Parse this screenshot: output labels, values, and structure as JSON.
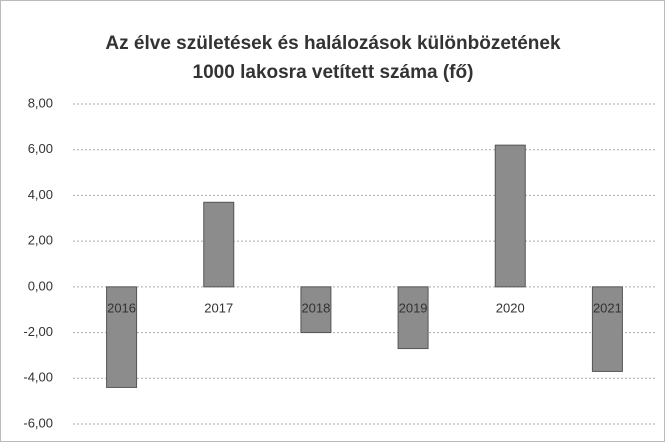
{
  "chart_data": {
    "type": "bar",
    "title": "Az élve születések és halálozások különbözetének 1000 lakosra vetített száma (fő)",
    "categories": [
      "2016",
      "2017",
      "2018",
      "2019",
      "2020",
      "2021"
    ],
    "values": [
      -4.4,
      3.7,
      -2.0,
      -2.7,
      6.2,
      -3.7
    ],
    "color": "#8c8c8c",
    "ylim": [
      -6,
      8
    ],
    "yticks": [
      {
        "value": -6,
        "label": "-6,00"
      },
      {
        "value": -4,
        "label": "-4,00"
      },
      {
        "value": -2,
        "label": "-2,00"
      },
      {
        "value": 0,
        "label": "0,00"
      },
      {
        "value": 2,
        "label": "2,00"
      },
      {
        "value": 4,
        "label": "4,00"
      },
      {
        "value": 6,
        "label": "6,00"
      },
      {
        "value": 8,
        "label": "8,00"
      }
    ],
    "grid": true
  }
}
